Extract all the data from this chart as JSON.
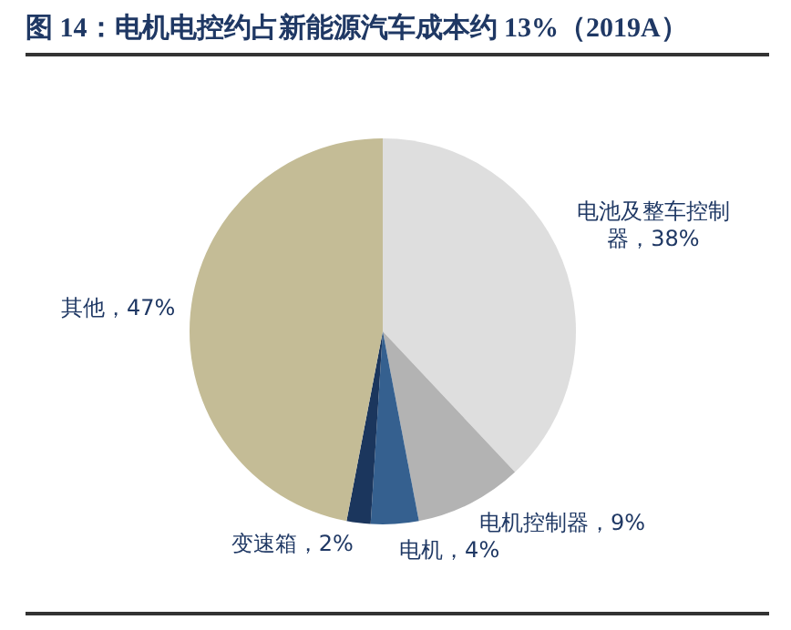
{
  "chart_data": {
    "type": "pie",
    "title": "图 14：电机电控约占新能源汽车成本约 13%（2019A）",
    "categories": [
      "电池及整车控制器",
      "电机控制器",
      "电机",
      "变速箱",
      "其他"
    ],
    "values": [
      38,
      9,
      4,
      2,
      47
    ],
    "colors": [
      "#dedede",
      "#b3b3b3",
      "#35608f",
      "#1b365d",
      "#c4bc96"
    ],
    "value_labels": [
      "38%",
      "9%",
      "4%",
      "2%",
      "47%"
    ],
    "legend": false
  }
}
